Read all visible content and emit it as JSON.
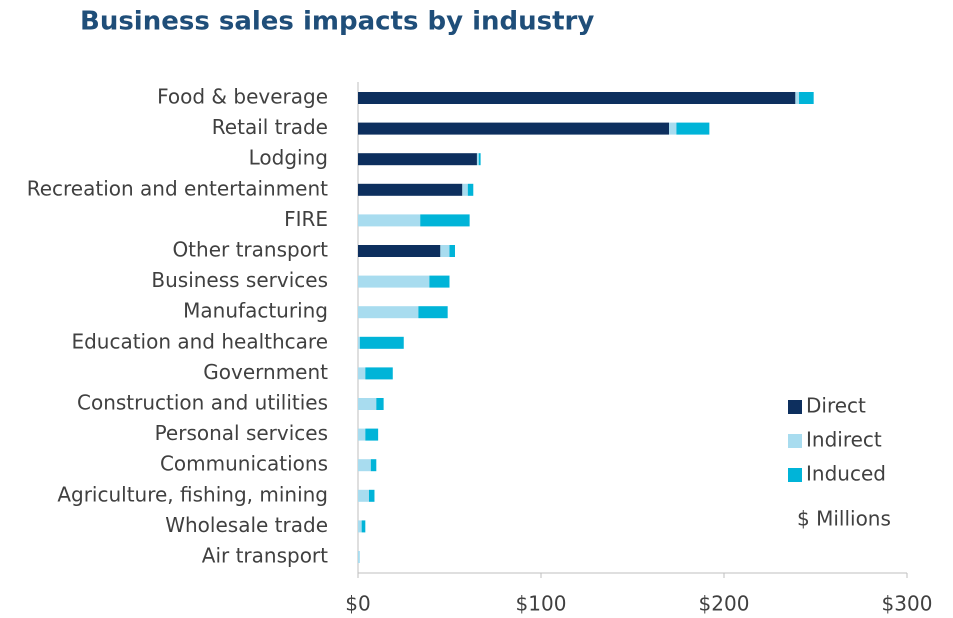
{
  "chart_data": {
    "type": "stacked-bar-horizontal",
    "title": "Business sales impacts by industry",
    "annotation": "$ Millions",
    "categories": [
      "Food & beverage",
      "Retail trade",
      "Lodging",
      "Recreation and entertainment",
      "FIRE",
      "Other transport",
      "Business services",
      "Manufacturing",
      "Education and healthcare",
      "Government",
      "Construction and utilities",
      "Personal services",
      "Communications",
      "Agriculture, fishing, mining",
      "Wholesale trade",
      "Air transport"
    ],
    "series": [
      {
        "name": "Direct",
        "color": "#0d2f5e",
        "values": [
          239,
          170,
          65,
          57,
          0,
          45,
          0,
          0,
          0,
          0,
          0,
          0,
          0,
          0,
          0,
          0
        ]
      },
      {
        "name": "Indirect",
        "color": "#a8dcef",
        "values": [
          2,
          4,
          1,
          3,
          34,
          5,
          39,
          33,
          1,
          4,
          10,
          4,
          7,
          6,
          2,
          1
        ]
      },
      {
        "name": "Induced",
        "color": "#00b4d8",
        "values": [
          8,
          18,
          1,
          3,
          27,
          3,
          11,
          16,
          24,
          15,
          4,
          7,
          3,
          3,
          2,
          0
        ]
      }
    ],
    "xlim": [
      0,
      300
    ],
    "xticks": [
      {
        "value": 0,
        "label": "$0"
      },
      {
        "value": 100,
        "label": "$100"
      },
      {
        "value": 200,
        "label": "$200"
      },
      {
        "value": 300,
        "label": "$300"
      }
    ],
    "legend": "lower right"
  }
}
